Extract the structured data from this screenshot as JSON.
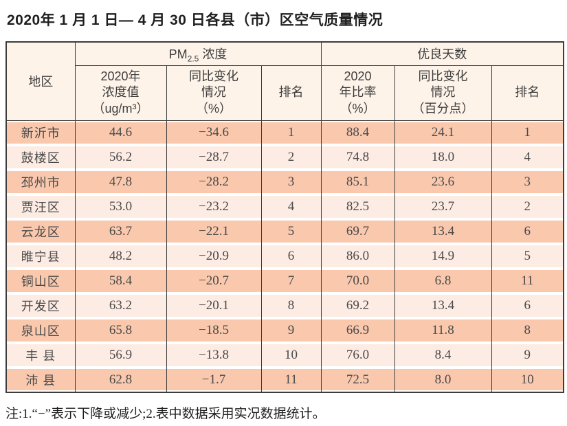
{
  "title": "2020年 1 月 1 日— 4 月 30 日各县（市）区空气质量情况",
  "table": {
    "region_header": "地区",
    "pm_group": {
      "prefix": "PM",
      "sub": "2.5",
      "suffix": " 浓度"
    },
    "good_group": "优良天数",
    "subheaders": {
      "pm_value": "2020年\n浓度值\n（ug/m³）",
      "pm_change": "同比变化\n情况\n（%）",
      "pm_rank": "排名",
      "good_ratio": "2020\n年比率\n（%）",
      "good_change": "同比变化\n情况\n（百分点）",
      "good_rank": "排名"
    },
    "rows": [
      {
        "region": "新沂市",
        "pm_value": "44.6",
        "pm_change": "−34.6",
        "pm_rank": "1",
        "good_ratio": "88.4",
        "good_change": "24.1",
        "good_rank": "1"
      },
      {
        "region": "鼓楼区",
        "pm_value": "56.2",
        "pm_change": "−28.7",
        "pm_rank": "2",
        "good_ratio": "74.8",
        "good_change": "18.0",
        "good_rank": "4"
      },
      {
        "region": "邳州市",
        "pm_value": "47.8",
        "pm_change": "−28.2",
        "pm_rank": "3",
        "good_ratio": "85.1",
        "good_change": "23.6",
        "good_rank": "3"
      },
      {
        "region": "贾汪区",
        "pm_value": "53.0",
        "pm_change": "−23.2",
        "pm_rank": "4",
        "good_ratio": "82.5",
        "good_change": "23.7",
        "good_rank": "2"
      },
      {
        "region": "云龙区",
        "pm_value": "63.7",
        "pm_change": "−22.1",
        "pm_rank": "5",
        "good_ratio": "69.7",
        "good_change": "13.4",
        "good_rank": "6"
      },
      {
        "region": "睢宁县",
        "pm_value": "48.2",
        "pm_change": "−20.9",
        "pm_rank": "6",
        "good_ratio": "86.0",
        "good_change": "14.9",
        "good_rank": "5"
      },
      {
        "region": "铜山区",
        "pm_value": "58.4",
        "pm_change": "−20.7",
        "pm_rank": "7",
        "good_ratio": "70.0",
        "good_change": "6.8",
        "good_rank": "11"
      },
      {
        "region": "开发区",
        "pm_value": "63.2",
        "pm_change": "−20.1",
        "pm_rank": "8",
        "good_ratio": "69.2",
        "good_change": "13.4",
        "good_rank": "6"
      },
      {
        "region": "泉山区",
        "pm_value": "65.8",
        "pm_change": "−18.5",
        "pm_rank": "9",
        "good_ratio": "66.9",
        "good_change": "11.8",
        "good_rank": "8"
      },
      {
        "region": "丰 县",
        "pm_value": "56.9",
        "pm_change": "−13.8",
        "pm_rank": "10",
        "good_ratio": "76.0",
        "good_change": "8.4",
        "good_rank": "9"
      },
      {
        "region": "沛 县",
        "pm_value": "62.8",
        "pm_change": "−1.7",
        "pm_rank": "11",
        "good_ratio": "72.5",
        "good_change": "8.0",
        "good_rank": "10"
      }
    ]
  },
  "note": "注:1.“−”表示下降或减少;2.表中数据采用实况数据统计。",
  "colors": {
    "band_strong": "#f9c8ad",
    "band_light": "#fdece3",
    "header_bg": "#fdf3e9",
    "border": "#3c3c3c"
  }
}
